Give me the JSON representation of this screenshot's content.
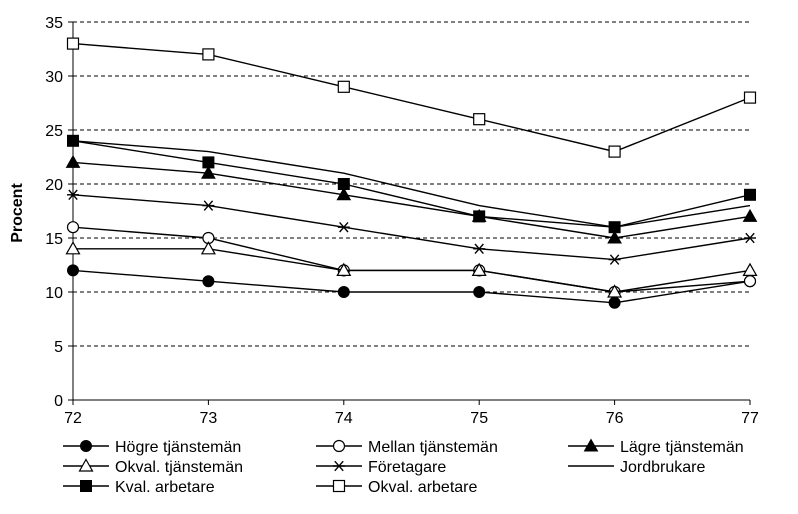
{
  "chart_data": {
    "type": "line",
    "ylabel": "Procent",
    "xlabel": "",
    "x": [
      "72",
      "73",
      "74",
      "75",
      "76",
      "77"
    ],
    "ylim": [
      0,
      35
    ],
    "yticks": [
      0,
      5,
      10,
      15,
      20,
      25,
      30,
      35
    ],
    "grid": "horizontal dashed",
    "legend_position": "bottom",
    "series": [
      {
        "name": "Högre tjänstemän",
        "marker": "circle-filled",
        "values": [
          12,
          11,
          10,
          10,
          9,
          11
        ]
      },
      {
        "name": "Mellan tjänstemän",
        "marker": "circle-open",
        "values": [
          16,
          15,
          12,
          12,
          10,
          11
        ]
      },
      {
        "name": "Lägre tjänstemän",
        "marker": "triangle-filled",
        "values": [
          22,
          21,
          19,
          17,
          15,
          17
        ]
      },
      {
        "name": "Okval. tjänstemän",
        "marker": "triangle-open",
        "values": [
          14,
          14,
          12,
          12,
          10,
          12
        ]
      },
      {
        "name": "Företagare",
        "marker": "asterisk",
        "values": [
          19,
          18,
          16,
          14,
          13,
          15
        ]
      },
      {
        "name": "Jordbrukare",
        "marker": "none",
        "values": [
          24,
          23,
          21,
          18,
          16,
          18
        ]
      },
      {
        "name": "Kval. arbetare",
        "marker": "square-filled",
        "values": [
          24,
          22,
          20,
          17,
          16,
          19
        ]
      },
      {
        "name": "Okval. arbetare",
        "marker": "square-open",
        "values": [
          33,
          32,
          29,
          26,
          23,
          28
        ]
      }
    ]
  }
}
